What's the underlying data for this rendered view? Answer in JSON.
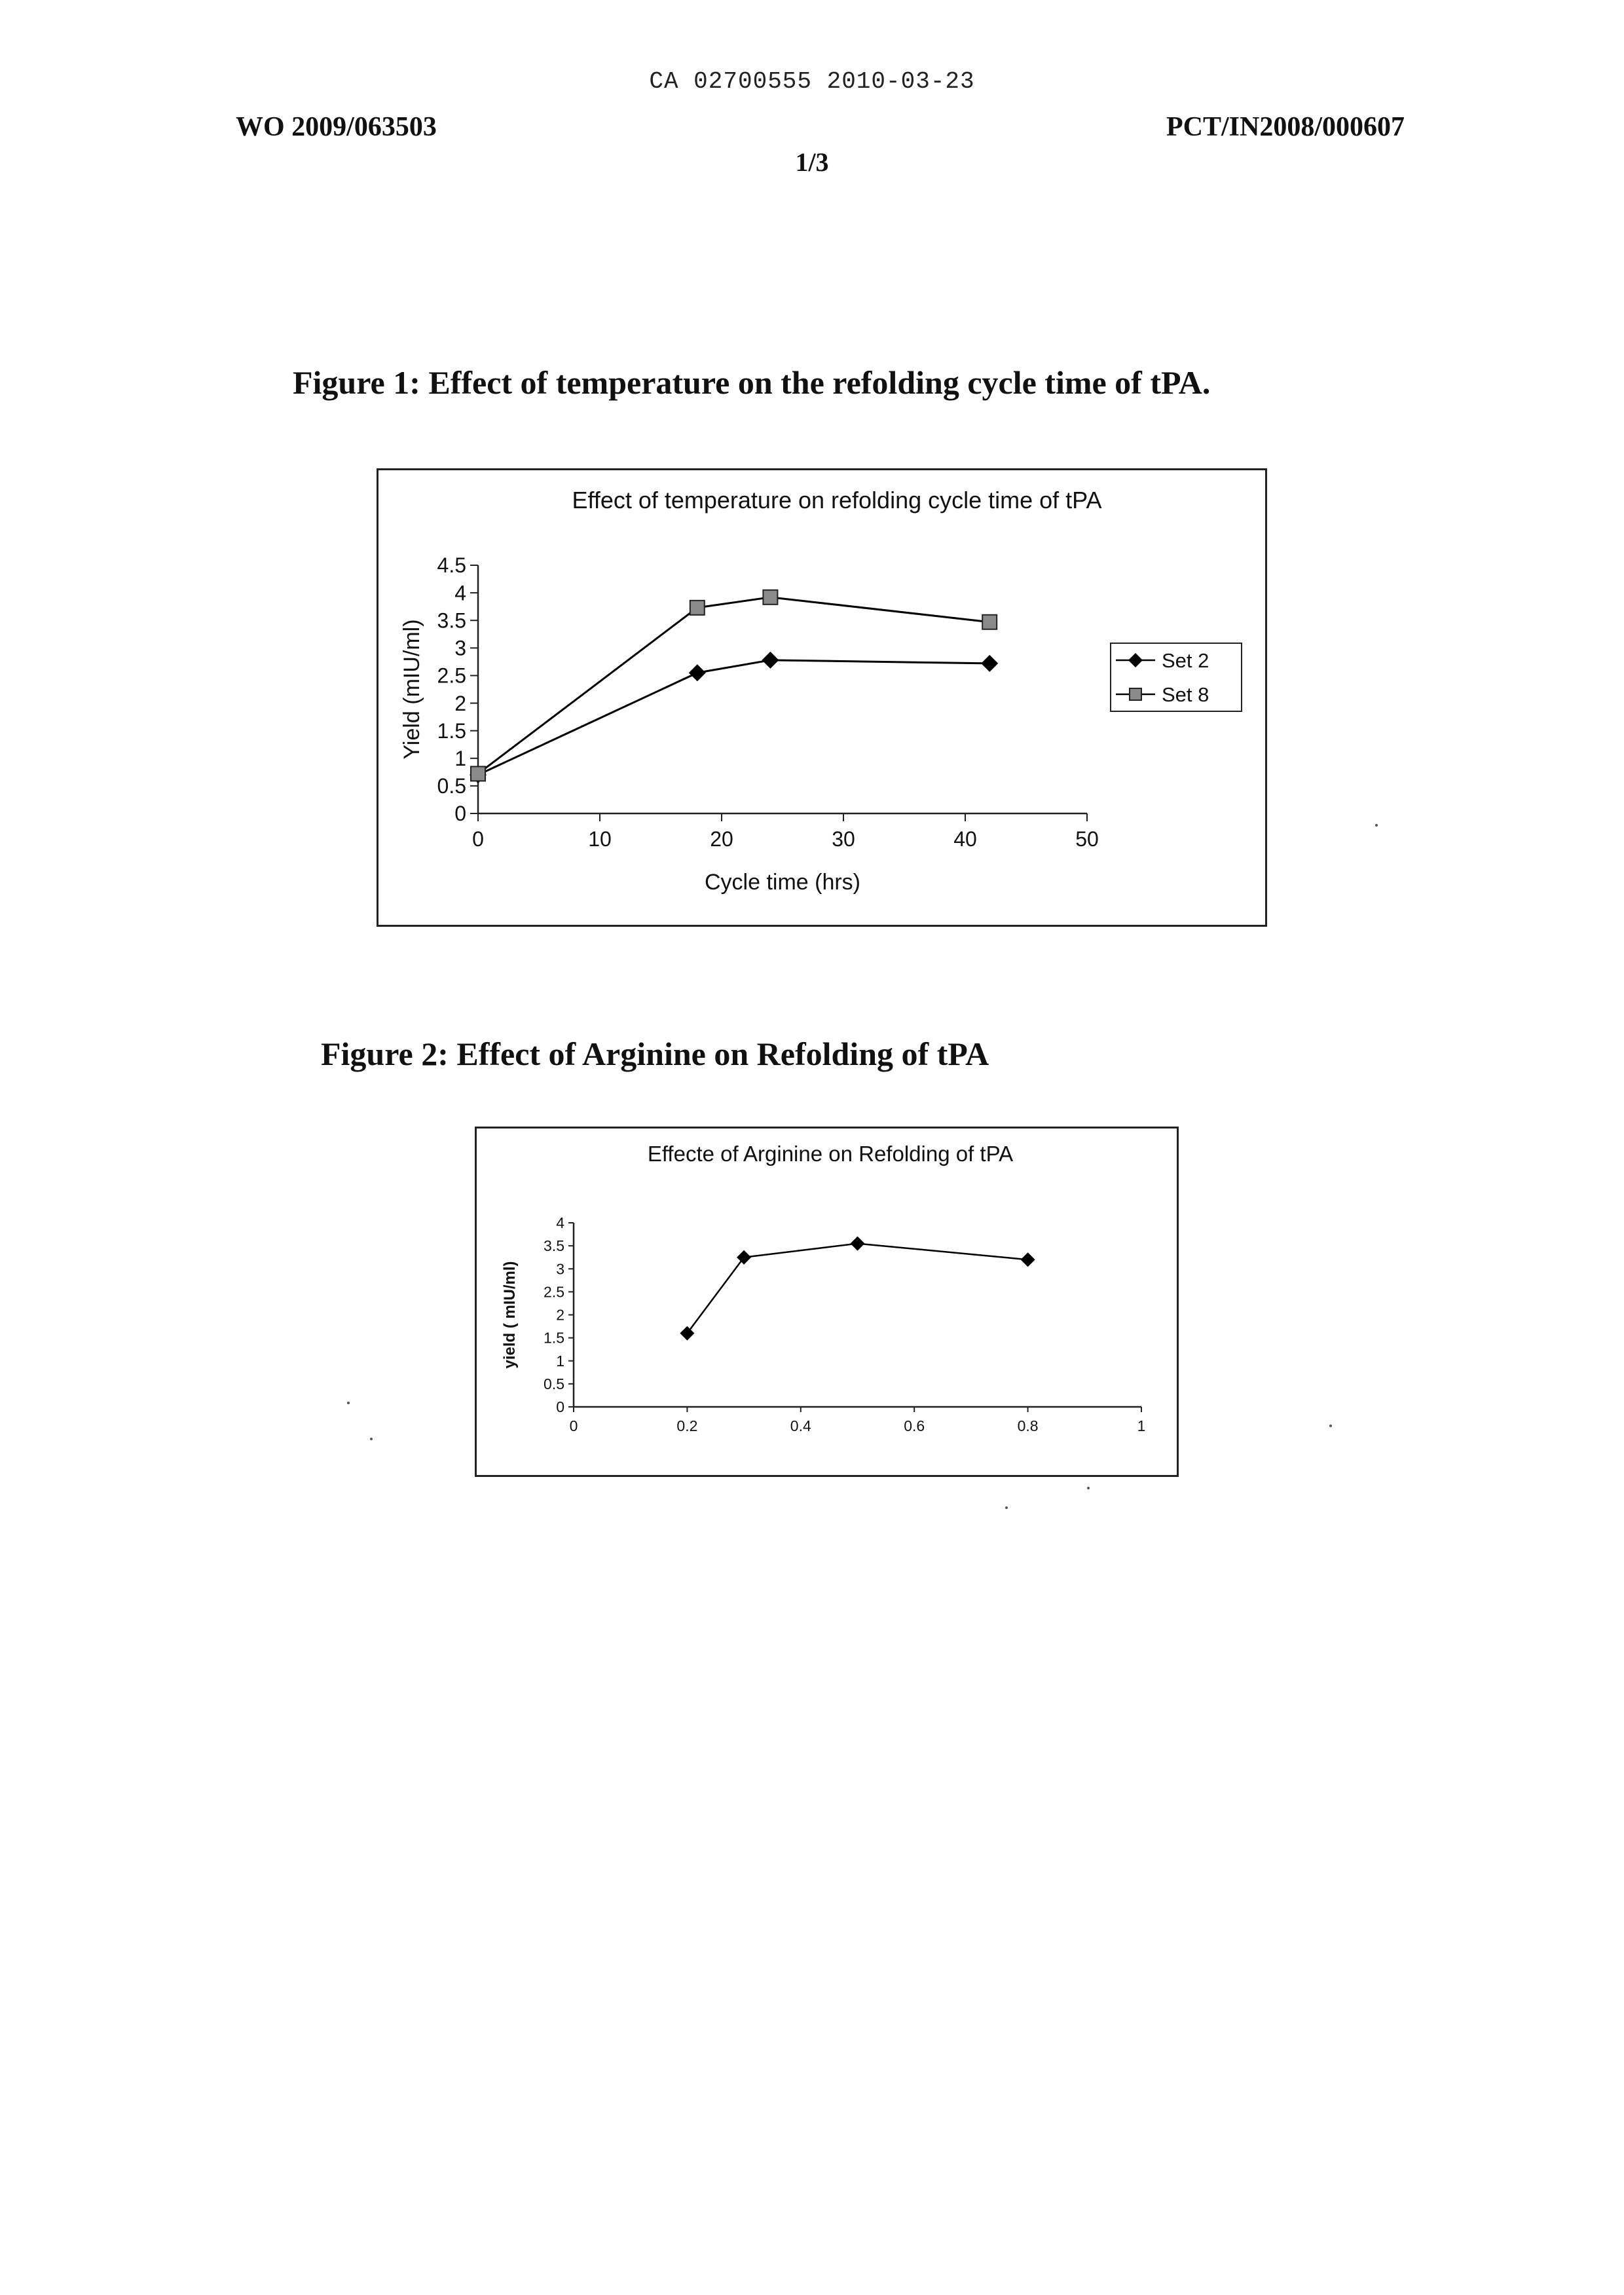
{
  "header": {
    "ca_line": "CA 02700555 2010-03-23",
    "wo_number": "WO 2009/063503",
    "pct_number": "PCT/IN2008/000607",
    "page_indicator": "1/3"
  },
  "figures": [
    {
      "caption": "Figure 1: Effect of temperature on the refolding cycle time of tPA."
    },
    {
      "caption": "Figure 2: Effect of Arginine on Refolding of tPA"
    }
  ],
  "chart_data": [
    {
      "type": "line",
      "title": "Effect of temperature on refolding cycle time of tPA",
      "xlabel": "Cycle time (hrs)",
      "ylabel": "Yield (mIU/ml)",
      "xlim": [
        0,
        50
      ],
      "ylim": [
        0,
        4.5
      ],
      "xticks": [
        "0",
        "10",
        "20",
        "30",
        "40",
        "50"
      ],
      "yticks": [
        "0",
        "0.5",
        "1",
        "1.5",
        "2",
        "2.5",
        "3",
        "3.5",
        "4",
        "4.5"
      ],
      "grid": false,
      "legend_position": "right",
      "series": [
        {
          "name": "Set 2",
          "marker": "diamond",
          "color": "#000000",
          "x": [
            0,
            18,
            24,
            42
          ],
          "y": [
            0.7,
            2.55,
            2.78,
            2.72
          ]
        },
        {
          "name": "Set 8",
          "marker": "square",
          "color": "#000000",
          "x": [
            0,
            18,
            24,
            42
          ],
          "y": [
            0.72,
            3.73,
            3.92,
            3.47
          ]
        }
      ]
    },
    {
      "type": "line",
      "title": "Effecte of Arginine  on Refolding of tPA",
      "xlabel": "",
      "ylabel": "yield ( mIU/ml)",
      "xlim": [
        0,
        1
      ],
      "ylim": [
        0,
        4
      ],
      "xticks": [
        "0",
        "0.2",
        "0.4",
        "0.6",
        "0.8",
        "1"
      ],
      "yticks": [
        "0",
        "0.5",
        "1",
        "1.5",
        "2",
        "2.5",
        "3",
        "3.5",
        "4"
      ],
      "grid": false,
      "series": [
        {
          "marker": "diamond",
          "color": "#000000",
          "x": [
            0.2,
            0.3,
            0.5,
            0.8
          ],
          "y": [
            1.6,
            3.25,
            3.55,
            3.2
          ]
        }
      ]
    }
  ]
}
